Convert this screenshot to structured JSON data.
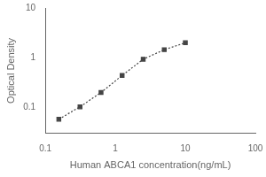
{
  "chart_data": {
    "type": "line",
    "x": [
      0.156,
      0.313,
      0.625,
      1.25,
      2.5,
      5.0,
      10.0
    ],
    "values": [
      0.058,
      0.103,
      0.2,
      0.44,
      0.93,
      1.45,
      2.0
    ],
    "xlabel": "Human ABCA1 concentration(ng/mL)",
    "ylabel": "Optical Density",
    "xlim": [
      0.1,
      100
    ],
    "ylim": [
      0.03,
      10
    ],
    "xticks": [
      0.1,
      1,
      10,
      100
    ],
    "yticks": [
      0.1,
      1,
      10
    ],
    "log": true,
    "grid": false,
    "color": "#444444",
    "marker": "square",
    "line_style": "dotted"
  }
}
